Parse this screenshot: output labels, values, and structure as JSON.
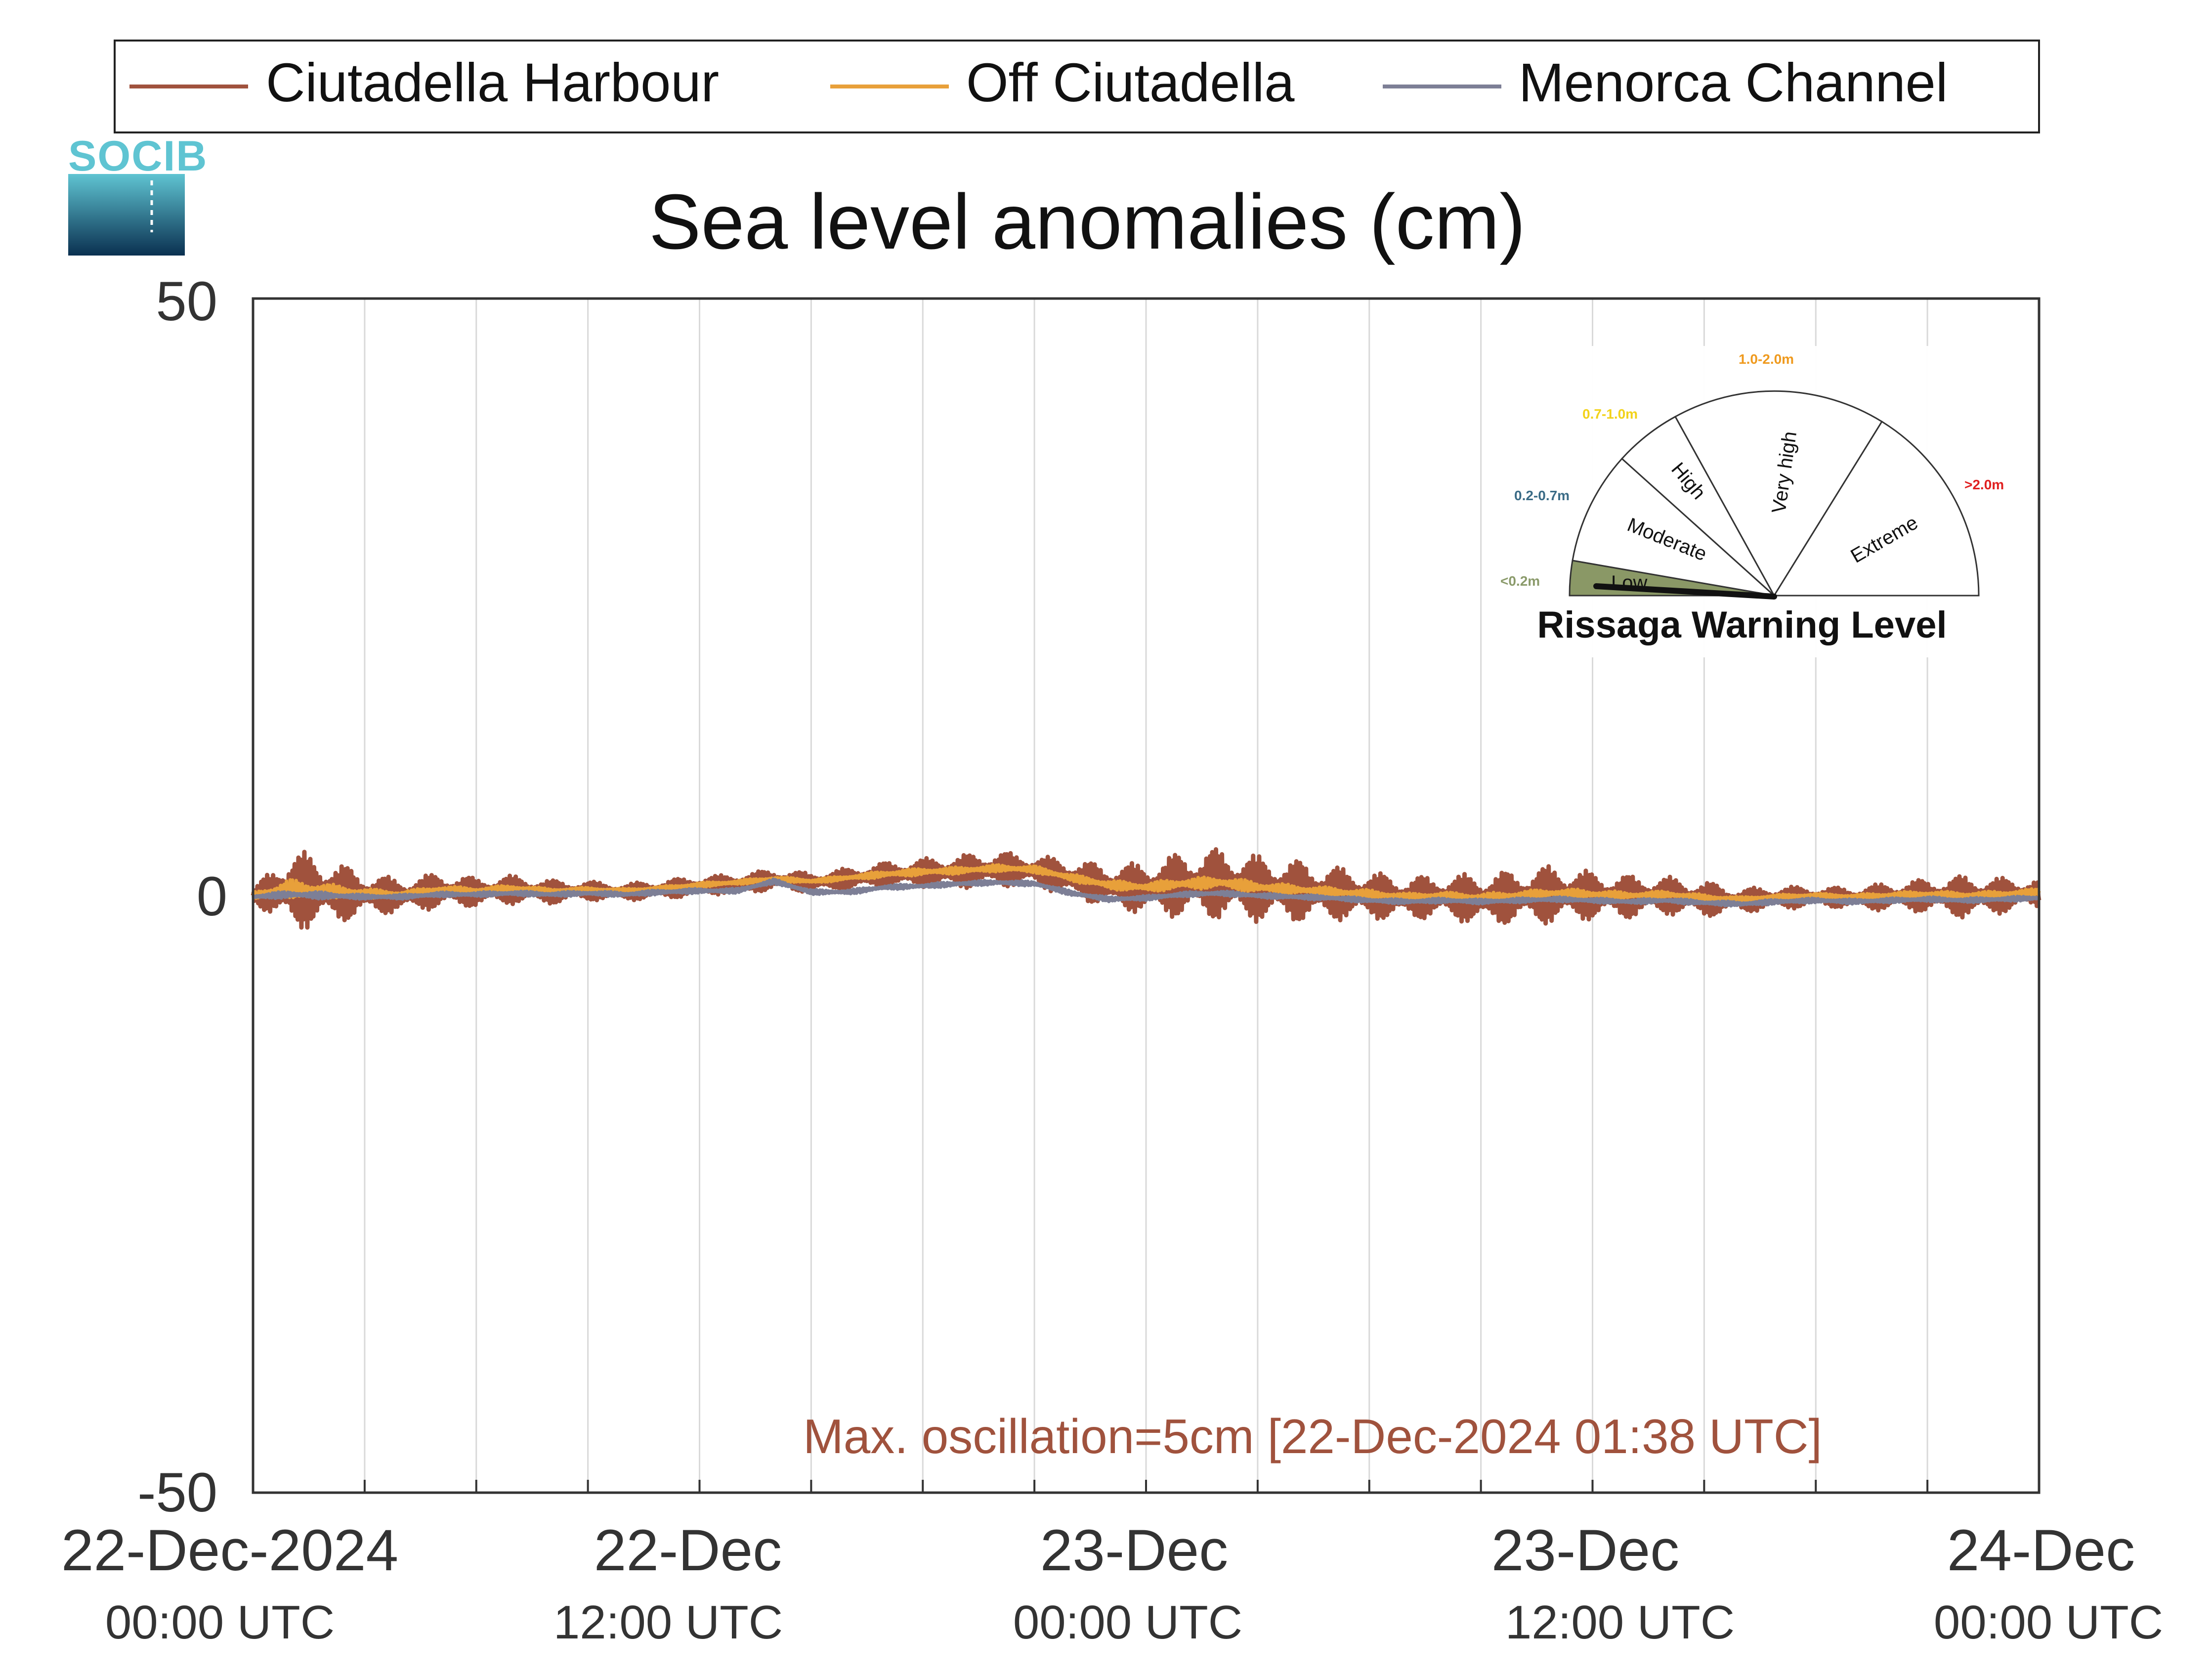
{
  "legend": {
    "items": [
      {
        "label": "Ciutadella Harbour",
        "color": "#a0523d"
      },
      {
        "label": "Off Ciutadella",
        "color": "#e8a03a"
      },
      {
        "label": "Menorca Channel",
        "color": "#7d7f96"
      }
    ]
  },
  "logo": {
    "text": "SOCIB"
  },
  "annotation": {
    "text": "Max. oscillation=5cm [22-Dec-2024 01:38 UTC]",
    "color": "#a0523d"
  },
  "gauge": {
    "title": "Rissaga Warning Level",
    "segments": [
      {
        "label": "Low",
        "range": "<0.2m",
        "range_color": "#8a9a6a",
        "active": true
      },
      {
        "label": "Moderate",
        "range": "0.2-0.7m",
        "range_color": "#3a6b86",
        "active": false
      },
      {
        "label": "High",
        "range": "0.7-1.0m",
        "range_color": "#f2d21a",
        "active": false
      },
      {
        "label": "Very high",
        "range": "1.0-2.0m",
        "range_color": "#ef9a1e",
        "active": false
      },
      {
        "label": "Extreme",
        "range": ">2.0m",
        "range_color": "#e02020",
        "active": false
      }
    ],
    "active_color": "#8a9866"
  },
  "chart_data": {
    "type": "line",
    "title": "Sea level anomalies (cm)",
    "xlabel": "",
    "ylabel": "",
    "x_unit": "hours since 22-Dec-2024 00:00 UTC",
    "xlim": [
      0,
      48
    ],
    "ylim": [
      -50,
      50
    ],
    "y_ticks": [
      "50",
      "0",
      "-50"
    ],
    "x_ticks": [
      {
        "date": "22-Dec-2024",
        "time": "00:00 UTC"
      },
      {
        "date": "22-Dec",
        "time": "12:00 UTC"
      },
      {
        "date": "23-Dec",
        "time": "00:00 UTC"
      },
      {
        "date": "23-Dec",
        "time": "12:00 UTC"
      },
      {
        "date": "24-Dec",
        "time": "00:00 UTC"
      }
    ],
    "grid": "vertical",
    "legend_position": "top",
    "series": [
      {
        "name": "Ciutadella Harbour",
        "color": "#a0523d",
        "x": [
          0,
          1,
          2,
          3,
          4,
          5,
          6,
          7,
          8,
          9,
          10,
          11,
          12,
          13,
          14,
          15,
          16,
          17,
          18,
          19,
          20,
          21,
          22,
          23,
          24,
          25,
          26,
          27,
          28,
          29,
          30,
          31,
          32,
          33,
          34,
          35,
          36,
          37,
          38,
          39,
          40,
          41,
          42,
          43,
          44,
          45,
          46,
          47,
          48
        ],
        "y": [
          0,
          0.5,
          0.3,
          0.1,
          0,
          0.4,
          0.3,
          0.5,
          0.3,
          0.4,
          0.3,
          0.5,
          0.8,
          1.0,
          1.3,
          1.1,
          1.4,
          1.7,
          1.9,
          2.0,
          2.2,
          2.1,
          1.4,
          0.8,
          0.6,
          0.9,
          1.0,
          0.6,
          0.4,
          0.2,
          0,
          -0.2,
          -0.1,
          -0.3,
          -0.1,
          0.1,
          0,
          -0.1,
          0,
          -0.3,
          -0.4,
          -0.2,
          -0.1,
          -0.2,
          -0.1,
          0,
          -0.1,
          0,
          0.2
        ],
        "osc_amp": [
          0.5,
          3.5,
          2.8,
          1.8,
          1.4,
          1.5,
          1.2,
          1.2,
          1.0,
          0.8,
          0.7,
          0.8,
          0.8,
          0.8,
          0.9,
          0.8,
          0.9,
          1.1,
          1.2,
          1.4,
          1.5,
          1.3,
          1.6,
          1.8,
          2.2,
          2.8,
          3.0,
          2.8,
          2.6,
          2.3,
          2.0,
          1.8,
          1.8,
          2.2,
          2.2,
          2.5,
          2.0,
          1.8,
          1.6,
          1.5,
          1.0,
          1.0,
          0.8,
          0.9,
          1.2,
          1.4,
          1.8,
          1.5,
          1.2
        ]
      },
      {
        "name": "Off Ciutadella",
        "color": "#e8a03a",
        "x": [
          0,
          1,
          2,
          3,
          4,
          5,
          6,
          7,
          8,
          9,
          10,
          11,
          12,
          13,
          14,
          15,
          16,
          17,
          18,
          19,
          20,
          21,
          22,
          23,
          24,
          25,
          26,
          27,
          28,
          29,
          30,
          31,
          32,
          33,
          34,
          35,
          36,
          37,
          38,
          39,
          40,
          41,
          42,
          43,
          44,
          45,
          46,
          47,
          48
        ],
        "y": [
          0,
          0.6,
          0.4,
          0.2,
          0.1,
          0.5,
          0.4,
          0.6,
          0.4,
          0.5,
          0.4,
          0.6,
          0.9,
          1.1,
          1.4,
          1.2,
          1.5,
          1.8,
          2.0,
          2.1,
          2.3,
          2.2,
          1.5,
          0.9,
          0.7,
          1.0,
          1.1,
          0.7,
          0.5,
          0.3,
          0.1,
          -0.1,
          0,
          -0.2,
          0,
          0.2,
          0.1,
          0,
          0.1,
          -0.2,
          -0.3,
          -0.1,
          0,
          -0.1,
          0,
          0.1,
          0,
          0.1,
          0.3
        ],
        "osc_amp": [
          0.3,
          0.8,
          0.6,
          0.4,
          0.3,
          0.3,
          0.3,
          0.3,
          0.2,
          0.2,
          0.2,
          0.2,
          0.2,
          0.2,
          0.2,
          0.2,
          0.2,
          0.3,
          0.3,
          0.3,
          0.3,
          0.3,
          0.3,
          0.4,
          0.4,
          0.5,
          0.5,
          0.5,
          0.4,
          0.4,
          0.4,
          0.3,
          0.3,
          0.4,
          0.4,
          0.4,
          0.4,
          0.3,
          0.3,
          0.3,
          0.2,
          0.2,
          0.2,
          0.2,
          0.3,
          0.3,
          0.3,
          0.3,
          0.3
        ]
      },
      {
        "name": "Menorca Channel",
        "color": "#7d7f96",
        "x": [
          0,
          1,
          2,
          3,
          4,
          5,
          6,
          7,
          8,
          9,
          10,
          11,
          12,
          13,
          14,
          15,
          16,
          17,
          18,
          19,
          20,
          21,
          22,
          23,
          24,
          25,
          26,
          27,
          28,
          29,
          30,
          31,
          32,
          33,
          34,
          35,
          36,
          37,
          38,
          39,
          40,
          41,
          42,
          43,
          44,
          45,
          46,
          47,
          48
        ],
        "y": [
          -0.1,
          0.1,
          0,
          -0.1,
          -0.1,
          0.1,
          0.1,
          0.2,
          0.1,
          0.2,
          0.1,
          0.3,
          0.4,
          0.4,
          1.2,
          0.3,
          0.3,
          0.7,
          0.8,
          1.0,
          1.1,
          1.0,
          0.2,
          -0.3,
          -0.2,
          0.1,
          0.2,
          0,
          -0.1,
          -0.2,
          -0.4,
          -0.5,
          -0.4,
          -0.5,
          -0.4,
          -0.3,
          -0.4,
          -0.5,
          -0.4,
          -0.6,
          -0.7,
          -0.5,
          -0.4,
          -0.5,
          -0.4,
          -0.3,
          -0.4,
          -0.3,
          -0.2
        ],
        "osc_amp": [
          0.2,
          0.3,
          0.3,
          0.2,
          0.2,
          0.2,
          0.2,
          0.2,
          0.2,
          0.2,
          0.2,
          0.2,
          0.2,
          0.2,
          0.2,
          0.2,
          0.2,
          0.2,
          0.2,
          0.2,
          0.2,
          0.2,
          0.2,
          0.2,
          0.2,
          0.2,
          0.2,
          0.2,
          0.2,
          0.2,
          0.2,
          0.2,
          0.2,
          0.2,
          0.2,
          0.2,
          0.2,
          0.2,
          0.2,
          0.2,
          0.2,
          0.2,
          0.2,
          0.2,
          0.2,
          0.2,
          0.2,
          0.2,
          0.2
        ]
      }
    ]
  }
}
